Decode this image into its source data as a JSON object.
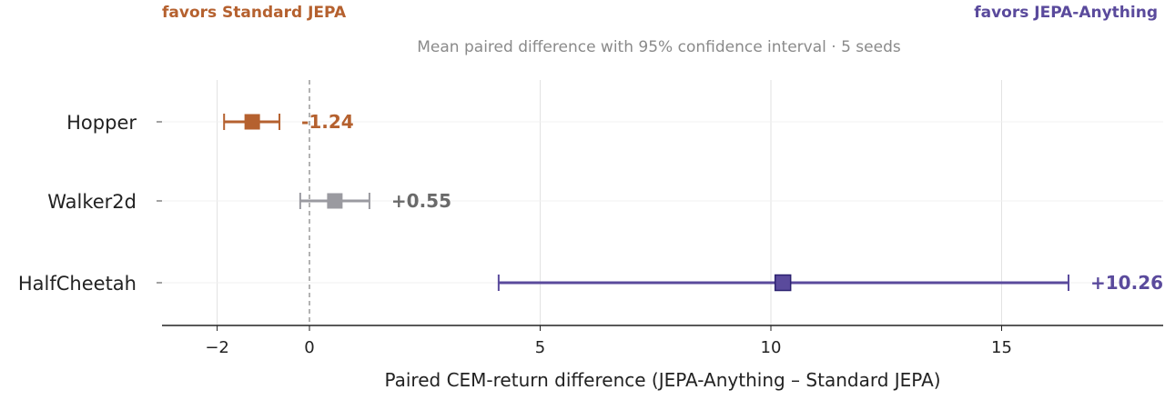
{
  "chart_data": {
    "type": "forest",
    "direction_labels": {
      "left": "favors Standard JEPA",
      "right": "favors JEPA-Anything"
    },
    "subtitle": "Mean paired difference with 95% confidence interval · 5 seeds",
    "xlabel": "Paired CEM-return difference  (JEPA-Anything – Standard JEPA)",
    "xlim": [
      -3.0,
      18.5
    ],
    "xticks": [
      -2,
      0,
      5,
      10,
      15
    ],
    "xtick_labels": [
      "−2",
      "0",
      "5",
      "10",
      "15"
    ],
    "reference_line": 0,
    "grid": "vertical",
    "categories": [
      "Hopper",
      "Walker2d",
      "HalfCheetah"
    ],
    "points": [
      {
        "label": "Hopper",
        "mean": -1.24,
        "ci": [
          -1.85,
          -0.65
        ],
        "value_label": "-1.24",
        "color": "#b5612f"
      },
      {
        "label": "Walker2d",
        "mean": 0.55,
        "ci": [
          -0.2,
          1.3
        ],
        "value_label": "+0.55",
        "color": "#9a9aa0"
      },
      {
        "label": "HalfCheetah",
        "mean": 10.26,
        "ci": [
          4.1,
          16.45
        ],
        "value_label": "+10.26",
        "color": "#5a4a9c"
      }
    ],
    "label_colors": {
      "neutral": "#6a6a6a"
    }
  }
}
